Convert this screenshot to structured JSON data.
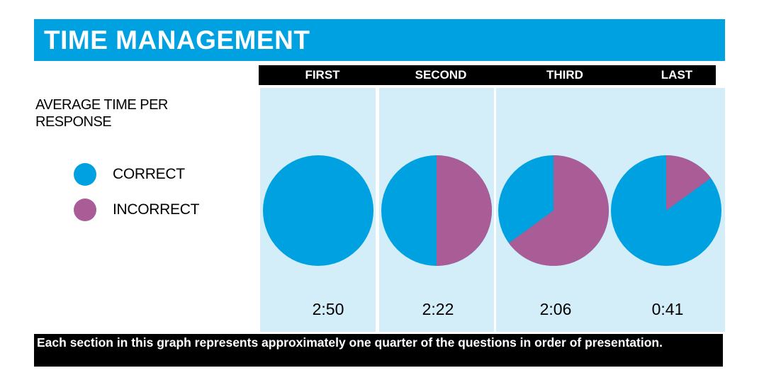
{
  "title": "TIME MANAGEMENT",
  "subtitle": "AVERAGE TIME PER RESPONSE",
  "footnote": "Each section in this graph represents approximately one quarter of the questions in order of presentation.",
  "legend": [
    {
      "label": "CORRECT",
      "color": "#00a1e0"
    },
    {
      "label": "INCORRECT",
      "color": "#a95c96"
    }
  ],
  "colors": {
    "title_bar": "#00a1e0",
    "panel": "#d4eef9",
    "header_bar": "#000000"
  },
  "chart_data": {
    "type": "pie",
    "categories": [
      "FIRST",
      "SECOND",
      "THIRD",
      "LAST"
    ],
    "series": [
      {
        "name": "CORRECT",
        "values": [
          100,
          50,
          35,
          85
        ]
      },
      {
        "name": "INCORRECT",
        "values": [
          0,
          50,
          65,
          15
        ]
      }
    ],
    "times": [
      "2:50",
      "2:22",
      "2:06",
      "0:41"
    ],
    "unit": "percent"
  }
}
